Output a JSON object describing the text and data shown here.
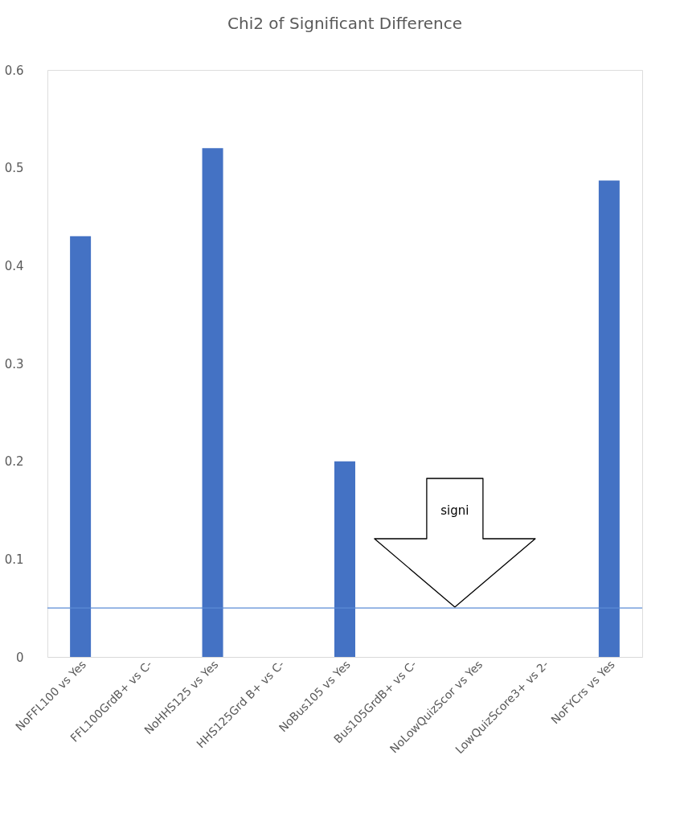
{
  "chart_data": {
    "type": "bar",
    "title": "Chi2 of Significant Difference",
    "categories": [
      "NoFFL100 vs Yes",
      "FFL100GrdB+ vs C-",
      "NoHHS125 vs Yes",
      "HHS125Grd B+ vs C-",
      "NoBus105 vs Yes",
      "Bus105GrdB+ vs C-",
      "NoLowQuizScor vs Yes",
      "LowQuizScore3+ vs 2-",
      "NoFYCrs vs Yes"
    ],
    "values": [
      0.43,
      0,
      0.52,
      0,
      0.2,
      0,
      0,
      0,
      0.487
    ],
    "color": "#4472c4",
    "ylim": [
      0,
      0.6
    ],
    "yticks": [
      0,
      0.1,
      0.2,
      0.3,
      0.4,
      0.5,
      0.6
    ],
    "grid": false,
    "ref_lines": [
      {
        "axis": "y",
        "value": 0.05,
        "label": null,
        "color": "#5b8bd6"
      }
    ],
    "annotations": [
      "signi"
    ]
  }
}
